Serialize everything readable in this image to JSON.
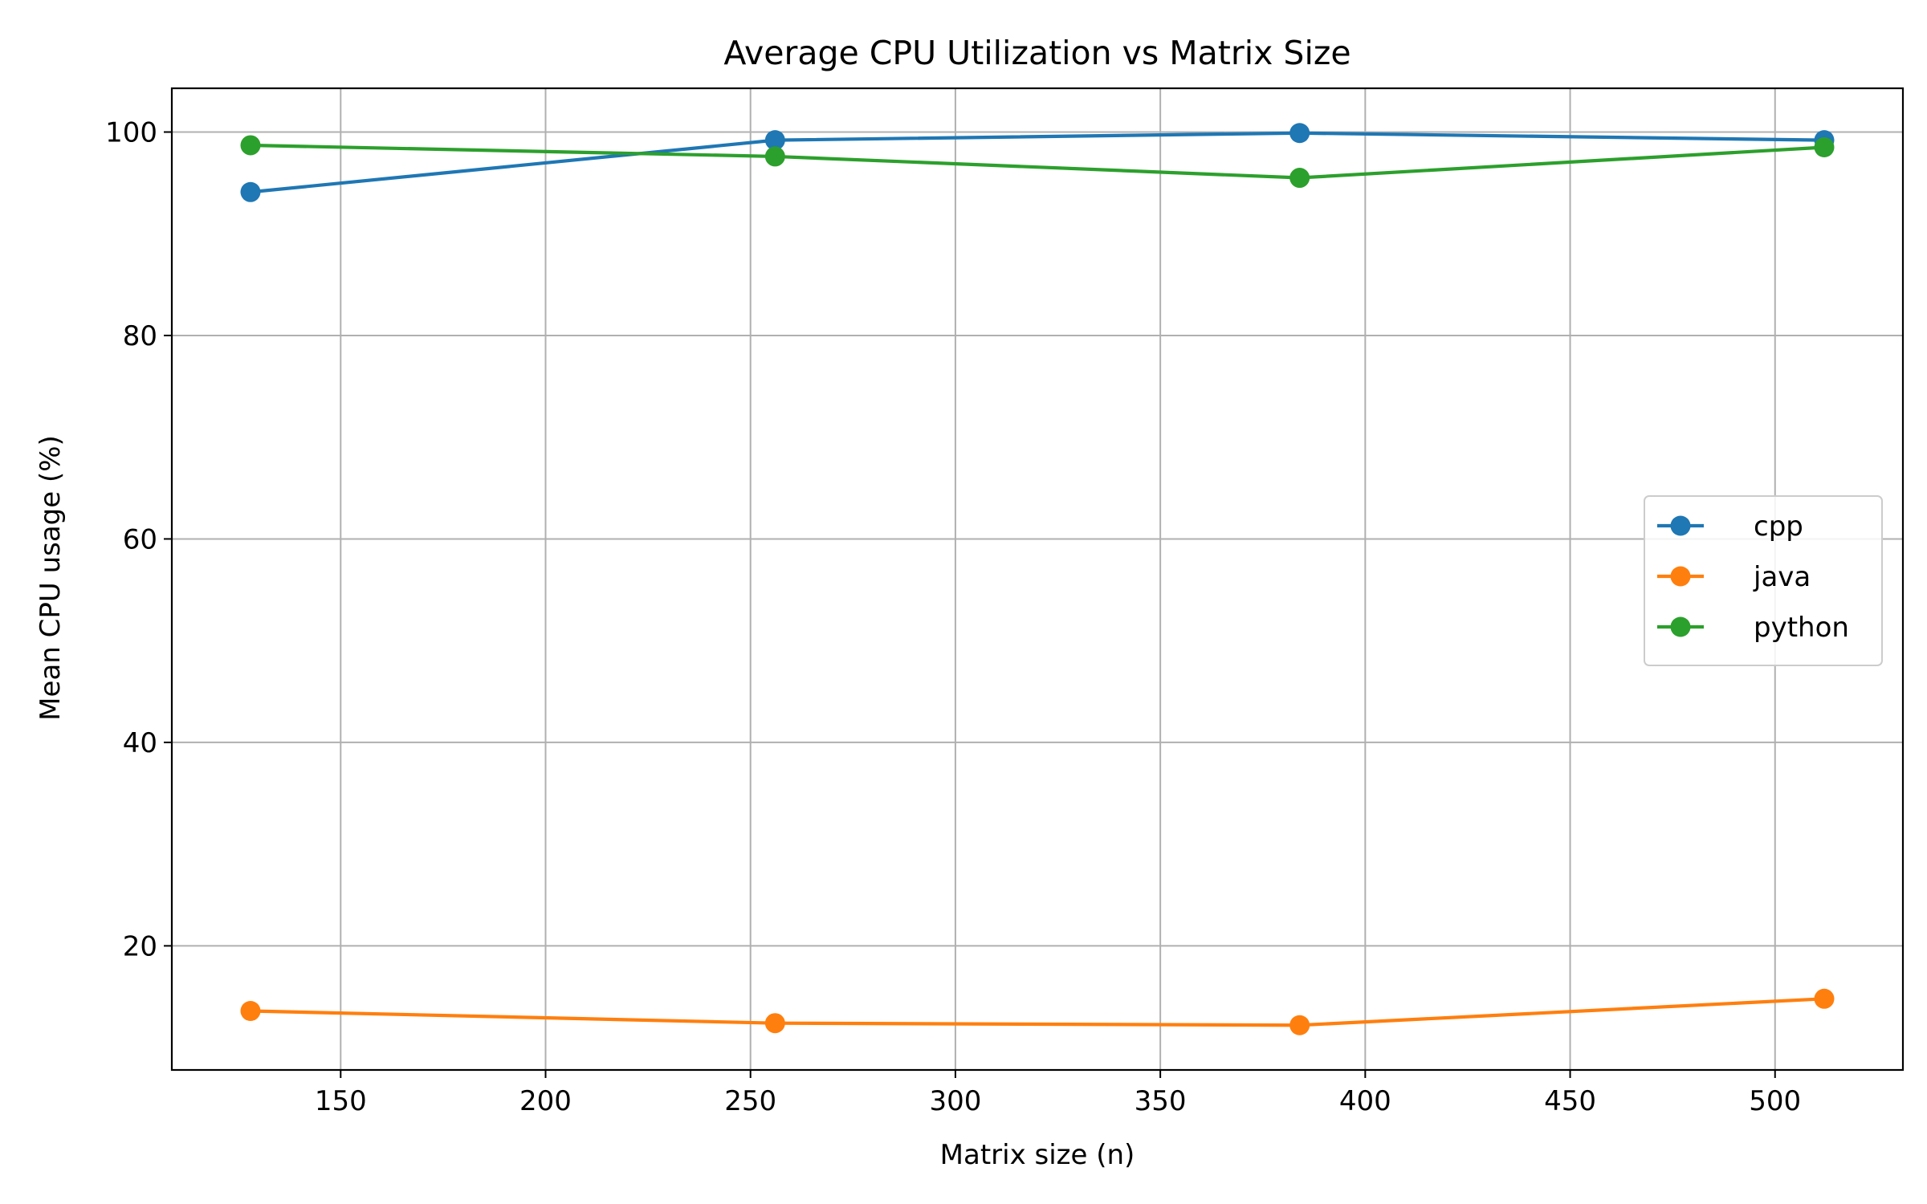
{
  "chart_data": {
    "type": "line",
    "title": "Average CPU Utilization vs Matrix Size",
    "xlabel": "Matrix size (n)",
    "ylabel": "Mean CPU usage (%)",
    "x": [
      128,
      256,
      384,
      512
    ],
    "xlim": [
      108.8,
      531.2
    ],
    "ylim": [
      7.8,
      104.3
    ],
    "xticks": [
      150,
      200,
      250,
      300,
      350,
      400,
      450,
      500
    ],
    "yticks": [
      20,
      40,
      60,
      80,
      100
    ],
    "grid": true,
    "legend_position": "center-right",
    "series": [
      {
        "name": "cpp",
        "color": "#1f77b4",
        "values": [
          94.1,
          99.2,
          99.9,
          99.2
        ]
      },
      {
        "name": "java",
        "color": "#ff7f0e",
        "values": [
          13.6,
          12.4,
          12.2,
          14.8
        ]
      },
      {
        "name": "python",
        "color": "#2ca02c",
        "values": [
          98.7,
          97.6,
          95.5,
          98.5
        ]
      }
    ]
  }
}
